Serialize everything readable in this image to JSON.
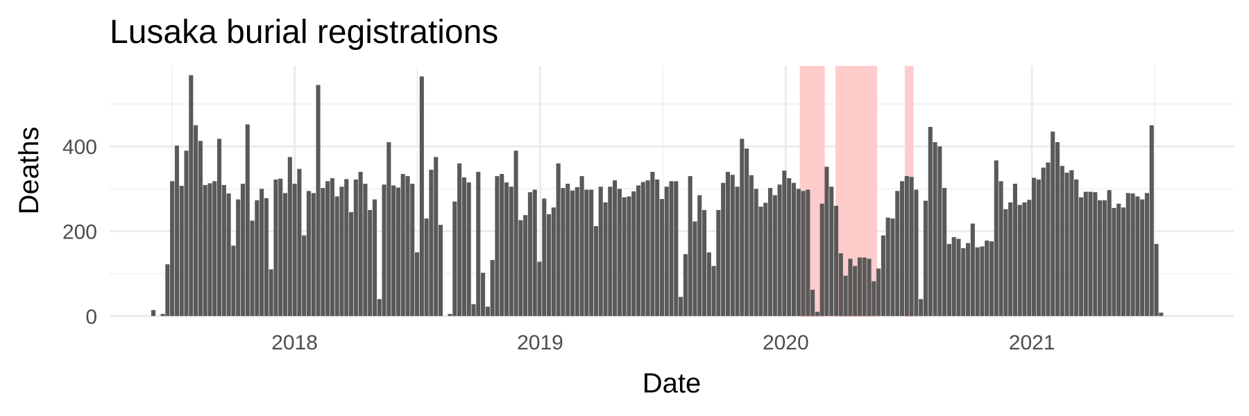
{
  "chart_data": {
    "type": "bar",
    "title": "Lusaka burial registrations",
    "xlabel": "Date",
    "ylabel": "Deaths",
    "x_axis": {
      "type": "date",
      "range": [
        "2017-04-01",
        "2021-10-28"
      ],
      "ticks": [
        "2018-01-01",
        "2019-01-01",
        "2020-01-01",
        "2021-01-01"
      ],
      "tick_labels": [
        "2018",
        "2019",
        "2020",
        "2021"
      ]
    },
    "y_axis": {
      "range": [
        -2,
        590
      ],
      "ticks": [
        0,
        200,
        400
      ],
      "tick_labels": [
        "0",
        "200",
        "400"
      ]
    },
    "grid": true,
    "legend": "none",
    "colors": {
      "bar": "#595959",
      "highlight": "#ffcccc",
      "grid": "#ebebeb"
    },
    "highlight_periods": [
      {
        "start": "2020-01-22",
        "end": "2020-02-28"
      },
      {
        "start": "2020-03-15",
        "end": "2020-05-16"
      },
      {
        "start": "2020-06-26",
        "end": "2020-07-09"
      }
    ],
    "series": [
      {
        "start": "2017-06-05",
        "interval_days": 7,
        "values": [
          14,
          0,
          5,
          122,
          318,
          402,
          307,
          390,
          568,
          450,
          413,
          309,
          313,
          318,
          418,
          309,
          289,
          166,
          275,
          312,
          452,
          225,
          273,
          300,
          278,
          110,
          322,
          324,
          290,
          375,
          312,
          347,
          190,
          295,
          290,
          545,
          302,
          318,
          325,
          282,
          305,
          323,
          245,
          322,
          340,
          312,
          250,
          275,
          40,
          310,
          410,
          308,
          303,
          335,
          330,
          312,
          150,
          565,
          230,
          345,
          375,
          215,
          0,
          5,
          270,
          360,
          327,
          315,
          28,
          340,
          102,
          22,
          132,
          330,
          335,
          315,
          305,
          390,
          226,
          238,
          292,
          298,
          128,
          277,
          240,
          256,
          360,
          302,
          312,
          296,
          304,
          330,
          298,
          298,
          212,
          305,
          268,
          305,
          320,
          300,
          280,
          282,
          294,
          308,
          316,
          320,
          340,
          322,
          276,
          305,
          318,
          318,
          45,
          146,
          330,
          223,
          285,
          250,
          150,
          118,
          250,
          314,
          340,
          333,
          305,
          418,
          395,
          332,
          300,
          258,
          267,
          302,
          285,
          310,
          343,
          325,
          314,
          300,
          295,
          298,
          62,
          10,
          265,
          352,
          305,
          260,
          148,
          95,
          135,
          118,
          138,
          138,
          135,
          82,
          112,
          190,
          232,
          230,
          295,
          318,
          330,
          328,
          298,
          40,
          272,
          446,
          410,
          400,
          302,
          170,
          186,
          182,
          160,
          172,
          218,
          162,
          164,
          178,
          176,
          367,
          318,
          252,
          268,
          312,
          262,
          268,
          274,
          326,
          322,
          350,
          362,
          435,
          410,
          354,
          338,
          344,
          322,
          280,
          293,
          293,
          292,
          273,
          273,
          297,
          255,
          265,
          256,
          290,
          289,
          282,
          275,
          290,
          450,
          170,
          8
        ]
      }
    ]
  }
}
